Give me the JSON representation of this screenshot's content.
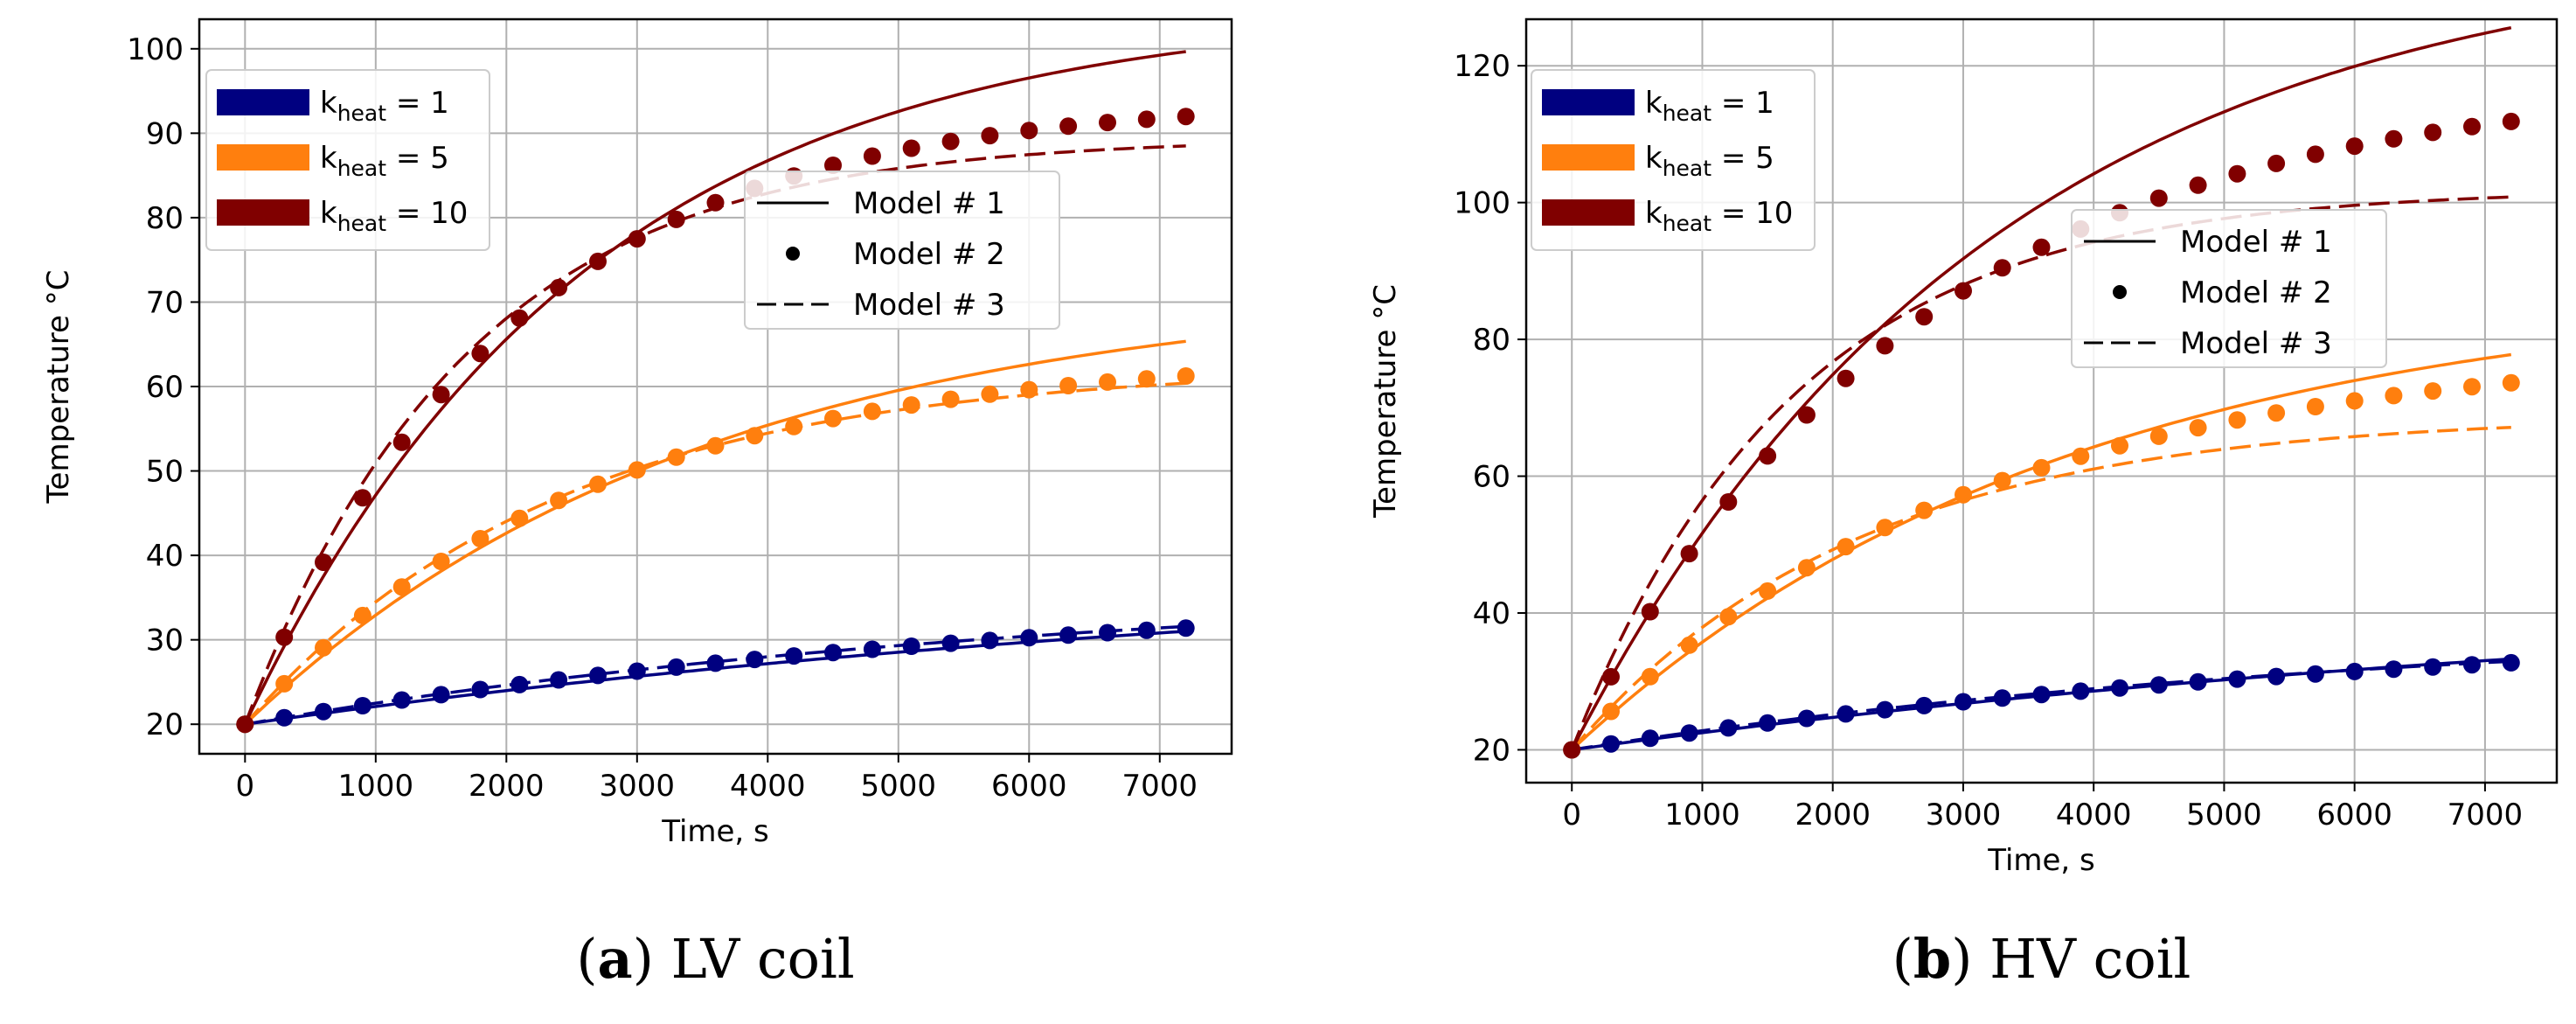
{
  "chart_data": [
    {
      "type": "line",
      "caption": {
        "letter": "a",
        "text": "LV coil"
      },
      "xlabel": "Time, s",
      "ylabel": "Temperature °C",
      "xlim": [
        -350,
        7550
      ],
      "ylim": [
        16.5,
        103.5
      ],
      "xticks": [
        0,
        1000,
        2000,
        3000,
        4000,
        5000,
        6000,
        7000
      ],
      "yticks": [
        20,
        30,
        40,
        50,
        60,
        70,
        80,
        90,
        100
      ],
      "grid": true,
      "color_legend": {
        "placement": "upper-left",
        "entries": [
          {
            "k": "1",
            "color": "#000080"
          },
          {
            "k": "5",
            "color": "#ff7f0e"
          },
          {
            "k": "10",
            "color": "#800000"
          }
        ]
      },
      "style_legend": {
        "placement": "center-right",
        "entries": [
          "Model # 1",
          "Model # 2",
          "Model # 3"
        ]
      },
      "series": [
        {
          "k": "1",
          "color": "#000080",
          "T0": 20,
          "model1": {
            "Tinf": 40,
            "tau": 9000
          },
          "model2": {
            "Tinf": 37,
            "tau": 6500
          },
          "model3": {
            "Tinf": 37,
            "tau": 6300
          }
        },
        {
          "k": "5",
          "color": "#ff7f0e",
          "T0": 20,
          "model1": {
            "Tinf": 72,
            "tau": 3500
          },
          "model2": {
            "Tinf": 64,
            "tau": 2600
          },
          "model3": {
            "Tinf": 62.5,
            "tau": 2400
          }
        },
        {
          "k": "10",
          "color": "#800000",
          "T0": 20,
          "model1": {
            "Tinf": 105,
            "tau": 2600
          },
          "model2": {
            "Tinf": 94,
            "tau": 2000
          },
          "model3": {
            "Tinf": 89.5,
            "tau": 1700
          }
        }
      ]
    },
    {
      "type": "line",
      "caption": {
        "letter": "b",
        "text": "HV coil"
      },
      "xlabel": "Time, s",
      "ylabel": "Temperature °C",
      "xlim": [
        -350,
        7550
      ],
      "ylim": [
        15.2,
        126.8
      ],
      "xticks": [
        0,
        1000,
        2000,
        3000,
        4000,
        5000,
        6000,
        7000
      ],
      "yticks": [
        20,
        40,
        60,
        80,
        100,
        120
      ],
      "grid": true,
      "color_legend": {
        "placement": "upper-left",
        "entries": [
          {
            "k": "1",
            "color": "#000080"
          },
          {
            "k": "5",
            "color": "#ff7f0e"
          },
          {
            "k": "10",
            "color": "#800000"
          }
        ]
      },
      "style_legend": {
        "placement": "center-right",
        "entries": [
          "Model # 1",
          "Model # 2",
          "Model # 3"
        ]
      },
      "series": [
        {
          "k": "1",
          "color": "#000080",
          "T0": 20,
          "model1": {
            "Tinf": 45,
            "tau": 9500
          },
          "model2": {
            "Tinf": 39,
            "tau": 6500
          },
          "model3": {
            "Tinf": 39,
            "tau": 6300
          }
        },
        {
          "k": "5",
          "color": "#ff7f0e",
          "T0": 20,
          "model1": {
            "Tinf": 88,
            "tau": 3800
          },
          "model2": {
            "Tinf": 79,
            "tau": 3000
          },
          "model3": {
            "Tinf": 69,
            "tau": 2200
          }
        },
        {
          "k": "10",
          "color": "#800000",
          "T0": 20,
          "model1": {
            "Tinf": 138,
            "tau": 3200
          },
          "model2": {
            "Tinf": 118,
            "tau": 2600
          },
          "model3": {
            "Tinf": 102,
            "tau": 1700
          }
        }
      ]
    }
  ]
}
